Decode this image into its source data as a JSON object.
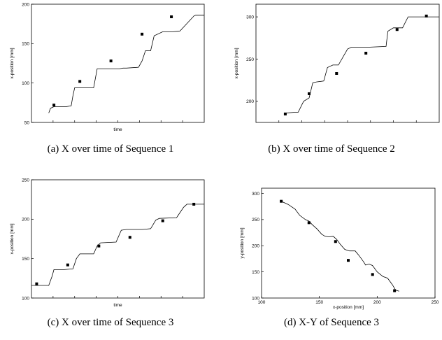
{
  "chart_data": [
    {
      "type": "line",
      "caption": "(a) X over time of Sequence 1",
      "xlabel": "time",
      "ylabel": "x-position [mm]",
      "ylim": [
        50,
        200
      ],
      "yticks": [
        50,
        100,
        150,
        200
      ],
      "xtick_labels": false,
      "xlim": [
        0,
        100
      ],
      "series": [
        {
          "style": "line",
          "x": [
            10,
            11,
            13,
            16,
            20,
            23,
            24,
            25,
            33,
            36,
            37,
            38,
            48,
            51,
            53,
            55,
            62,
            64,
            66,
            69,
            71,
            76,
            79,
            82,
            86,
            94,
            95,
            97,
            100
          ],
          "y": [
            62,
            68,
            70,
            70,
            70,
            71,
            84,
            94,
            94,
            94,
            106,
            118,
            118,
            118,
            119,
            119,
            120,
            128,
            141,
            141,
            160,
            165,
            165,
            165,
            166,
            185,
            186,
            186,
            186
          ]
        },
        {
          "style": "markers",
          "x": [
            13,
            28,
            46,
            64,
            81
          ],
          "y": [
            72,
            102,
            128,
            162,
            184
          ]
        }
      ]
    },
    {
      "type": "line",
      "caption": "(b) X over time of Sequence 2",
      "xlabel": "",
      "ylabel": "x-position [mm]",
      "ylim": [
        175,
        315
      ],
      "yticks": [
        200,
        250,
        300
      ],
      "xtick_labels": false,
      "xlim": [
        0,
        100
      ],
      "series": [
        {
          "style": "line",
          "x": [
            16,
            21,
            23,
            26,
            29,
            31,
            33,
            37,
            39,
            42,
            45,
            50,
            52,
            55,
            58,
            60,
            71,
            72,
            75,
            80,
            83,
            100
          ],
          "y": [
            186,
            187,
            187,
            200,
            204,
            222,
            223,
            224,
            240,
            243,
            243,
            262,
            264,
            264,
            264,
            264,
            265,
            283,
            287,
            287,
            300,
            300
          ]
        },
        {
          "style": "markers",
          "x": [
            16,
            29,
            44,
            60,
            77,
            93
          ],
          "y": [
            185,
            209,
            233,
            257,
            285,
            301
          ]
        }
      ]
    },
    {
      "type": "line",
      "caption": "(c) X over time of Sequence 3",
      "xlabel": "time",
      "ylabel": "x-position [mm]",
      "ylim": [
        100,
        250
      ],
      "yticks": [
        100,
        150,
        200,
        250
      ],
      "xtick_labels": false,
      "xlim": [
        0,
        100
      ],
      "series": [
        {
          "style": "line",
          "x": [
            0,
            10,
            12,
            13,
            19,
            24,
            26,
            28,
            36,
            38,
            40,
            49,
            52,
            55,
            64,
            69,
            72,
            74,
            84,
            88,
            90,
            100
          ],
          "y": [
            116,
            116,
            128,
            136,
            136,
            137,
            150,
            156,
            156,
            166,
            170,
            171,
            186,
            187,
            187,
            188,
            199,
            201,
            202,
            215,
            219,
            219
          ]
        },
        {
          "style": "markers",
          "x": [
            3,
            21,
            39,
            57,
            76,
            94
          ],
          "y": [
            118,
            142,
            166,
            177,
            198,
            219
          ]
        }
      ]
    },
    {
      "type": "line",
      "caption": "(d) X-Y of Sequence 3",
      "xlabel": "x-position [mm]",
      "ylabel": "y-position [mm]",
      "xlim": [
        100,
        250
      ],
      "ylim": [
        100,
        310
      ],
      "xticks": [
        100,
        150,
        200,
        250
      ],
      "yticks": [
        100,
        150,
        200,
        250,
        300
      ],
      "xtick_labels": true,
      "series": [
        {
          "style": "line",
          "x": [
            117,
            123,
            129,
            133,
            138,
            141,
            144,
            148,
            152,
            155,
            158,
            162,
            165,
            168,
            172,
            176,
            181,
            184,
            188,
            190,
            193,
            196,
            200,
            205,
            209,
            213,
            216,
            219
          ],
          "y": [
            285,
            279,
            270,
            258,
            250,
            247,
            240,
            232,
            222,
            218,
            217,
            218,
            212,
            203,
            193,
            190,
            190,
            182,
            170,
            163,
            165,
            162,
            150,
            141,
            138,
            126,
            115,
            113
          ]
        },
        {
          "style": "markers",
          "x": [
            117,
            141,
            164,
            175,
            196,
            215
          ],
          "y": [
            285,
            244,
            208,
            172,
            145,
            114
          ]
        }
      ]
    }
  ]
}
